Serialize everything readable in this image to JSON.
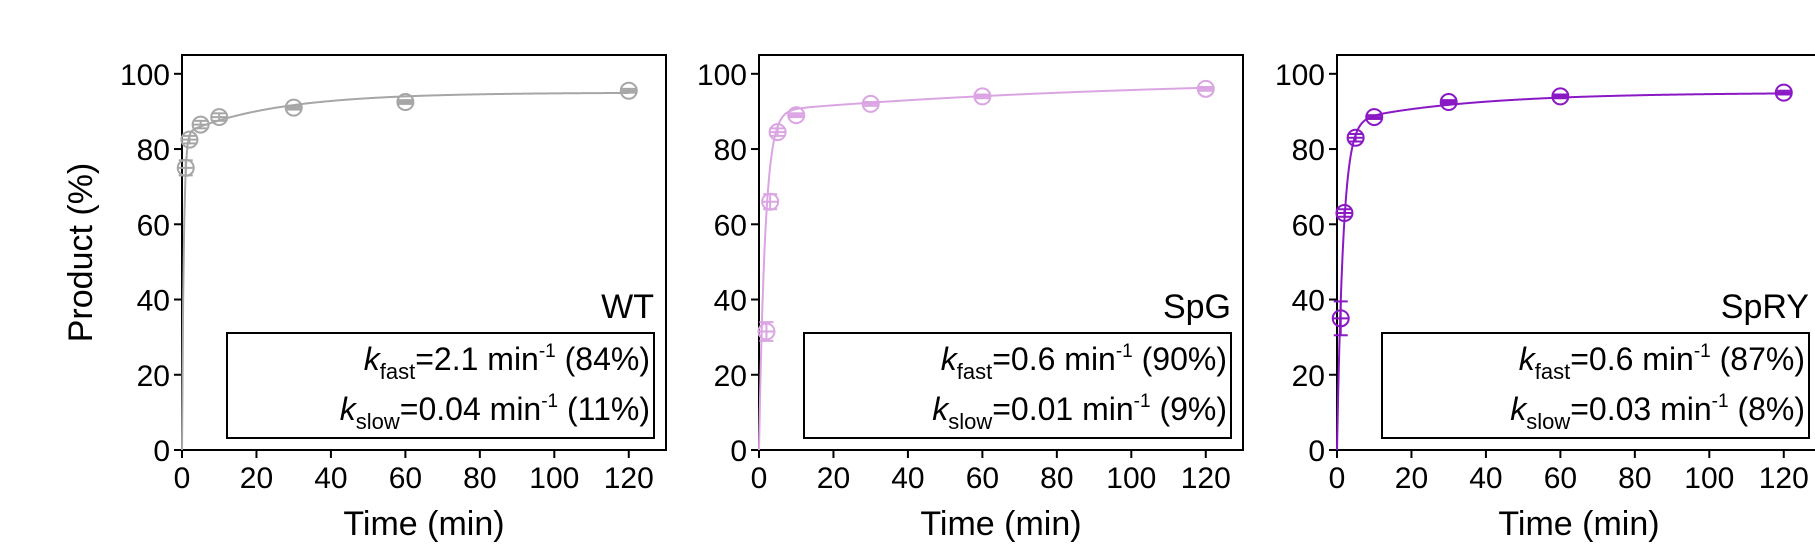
{
  "chart_data": [
    {
      "type": "scatter",
      "panel_label": "WT",
      "color": "#a6a6a6",
      "xlabel": "Time (min)",
      "ylabel": "Product (%)",
      "xlim": [
        0,
        130
      ],
      "ylim": [
        0,
        105
      ],
      "xticks": [
        0,
        20,
        40,
        60,
        80,
        100,
        120
      ],
      "yticks": [
        0,
        20,
        40,
        60,
        80,
        100
      ],
      "x": [
        0.5,
        1,
        2,
        5,
        10,
        30,
        60,
        120
      ],
      "y": [
        null,
        75,
        82.5,
        86.5,
        88.5,
        91,
        92.5,
        95.5
      ],
      "yerr": [
        null,
        2,
        1,
        1,
        1,
        0.5,
        0.5,
        0.5
      ],
      "fit": {
        "model": "biexponential",
        "a_fast": 84,
        "k_fast": 2.1,
        "a_slow": 11,
        "k_slow": 0.04
      },
      "annotation": {
        "fast": {
          "k": "k",
          "sub": "fast",
          "pre": "=2.1 min",
          "sup": "-1",
          "post": " (84%)"
        },
        "slow": {
          "k": "k",
          "sub": "slow",
          "pre": "=0.04 min",
          "sup": "-1",
          "post": " (11%)"
        }
      }
    },
    {
      "type": "scatter",
      "panel_label": "SpG",
      "color": "#dba5e3",
      "xlabel": "Time (min)",
      "ylabel": "",
      "xlim": [
        0,
        130
      ],
      "ylim": [
        0,
        105
      ],
      "xticks": [
        0,
        20,
        40,
        60,
        80,
        100,
        120
      ],
      "yticks": [
        0,
        20,
        40,
        60,
        80,
        100
      ],
      "x": [
        2,
        3,
        5,
        10,
        30,
        60,
        120
      ],
      "y": [
        31.5,
        66,
        84.5,
        89,
        92,
        94,
        96
      ],
      "yerr": [
        2.5,
        2,
        1,
        0.5,
        0.5,
        0.5,
        0.5
      ],
      "fit": {
        "model": "biexponential",
        "a_fast": 90,
        "k_fast": 0.6,
        "a_slow": 9,
        "k_slow": 0.01
      },
      "annotation": {
        "fast": {
          "k": "k",
          "sub": "fast",
          "pre": "=0.6 min",
          "sup": "-1",
          "post": " (90%)"
        },
        "slow": {
          "k": "k",
          "sub": "slow",
          "pre": "=0.01 min",
          "sup": "-1",
          "post": " (9%)"
        }
      }
    },
    {
      "type": "scatter",
      "panel_label": "SpRY",
      "color": "#8a18c4",
      "xlabel": "Time (min)",
      "ylabel": "",
      "xlim": [
        0,
        130
      ],
      "ylim": [
        0,
        105
      ],
      "xticks": [
        0,
        20,
        40,
        60,
        80,
        100,
        120
      ],
      "yticks": [
        0,
        20,
        40,
        60,
        80,
        100
      ],
      "x": [
        1,
        2,
        5,
        10,
        30,
        60,
        120
      ],
      "y": [
        35,
        63,
        83,
        88.5,
        92.5,
        94,
        95
      ],
      "yerr": [
        4.5,
        1,
        1,
        0.5,
        0.5,
        0.5,
        0.5
      ],
      "fit": {
        "model": "biexponential",
        "a_fast": 87,
        "k_fast": 0.6,
        "a_slow": 8,
        "k_slow": 0.03
      },
      "annotation": {
        "fast": {
          "k": "k",
          "sub": "fast",
          "pre": "=0.6 min",
          "sup": "-1",
          "post": " (87%)"
        },
        "slow": {
          "k": "k",
          "sub": "slow",
          "pre": "=0.03 min",
          "sup": "-1",
          "post": " (8%)"
        }
      }
    }
  ]
}
